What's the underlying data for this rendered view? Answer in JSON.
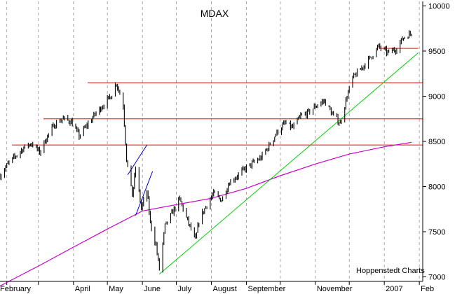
{
  "chart_data": {
    "type": "line",
    "title": "MDAX",
    "credit": "Hoppenstedt Charts",
    "ylim": [
      6950,
      10050
    ],
    "yticks": [
      "7000",
      "7500",
      "8000",
      "8500",
      "9000",
      "9500",
      "10000"
    ],
    "month_labels": [
      "February",
      "April",
      "May",
      "June",
      "July",
      "August",
      "September",
      "November",
      "2007",
      "Feb"
    ],
    "grid": "vertical-dashed",
    "price_series": {
      "name": "",
      "x": [
        "2006-01-26",
        "2006-02-02",
        "2006-02-09",
        "2006-02-16",
        "2006-02-23",
        "2006-03-02",
        "2006-03-09",
        "2006-03-16",
        "2006-03-23",
        "2006-03-30",
        "2006-04-06",
        "2006-04-13",
        "2006-04-20",
        "2006-04-27",
        "2006-05-04",
        "2006-05-09",
        "2006-05-15",
        "2006-05-18",
        "2006-05-23",
        "2006-05-26",
        "2006-05-31",
        "2006-06-05",
        "2006-06-08",
        "2006-06-13",
        "2006-06-16",
        "2006-06-21",
        "2006-06-27",
        "2006-07-04",
        "2006-07-11",
        "2006-07-18",
        "2006-07-21",
        "2006-07-27",
        "2006-08-03",
        "2006-08-10",
        "2006-08-17",
        "2006-08-24",
        "2006-08-31",
        "2006-09-07",
        "2006-09-14",
        "2006-09-21",
        "2006-09-28",
        "2006-10-05",
        "2006-10-12",
        "2006-10-19",
        "2006-10-26",
        "2006-11-02",
        "2006-11-09",
        "2006-11-16",
        "2006-11-23",
        "2006-11-29",
        "2006-12-04",
        "2006-12-11",
        "2006-12-18",
        "2006-12-27",
        "2007-01-04",
        "2007-01-11",
        "2007-01-18",
        "2007-01-25"
      ],
      "y": [
        8120,
        8250,
        8340,
        8430,
        8480,
        8380,
        8560,
        8700,
        8750,
        8720,
        8560,
        8680,
        8800,
        8900,
        9000,
        9150,
        8900,
        8300,
        7900,
        8200,
        7760,
        7950,
        7600,
        7350,
        7080,
        7560,
        7700,
        7860,
        7620,
        7400,
        7620,
        7780,
        7920,
        7850,
        8050,
        8120,
        8200,
        8260,
        8320,
        8450,
        8600,
        8700,
        8650,
        8780,
        8820,
        8900,
        8950,
        8800,
        8700,
        9000,
        9200,
        9300,
        9400,
        9550,
        9480,
        9520,
        9650,
        9700
      ]
    },
    "moving_average": {
      "name": "",
      "color": "#cc00cc",
      "x": [
        "2006-01-26",
        "2006-03-01",
        "2006-04-01",
        "2006-05-01",
        "2006-06-01",
        "2006-07-01",
        "2006-08-01",
        "2006-09-01",
        "2006-10-01",
        "2006-11-01",
        "2006-12-01",
        "2007-01-01",
        "2007-01-25"
      ],
      "y": [
        6900,
        7120,
        7330,
        7530,
        7730,
        7800,
        7870,
        7980,
        8120,
        8250,
        8360,
        8440,
        8490
      ]
    },
    "horizontal_lines": {
      "color": "#ff0000",
      "levels": [
        8460,
        8750,
        9150
      ]
    },
    "resistance_segment": {
      "color": "#ff0000",
      "level": 9530,
      "x": [
        "2006-12-27",
        "2007-01-31"
      ]
    },
    "trendline": {
      "color": "#00cc00",
      "x": [
        "2006-06-16",
        "2007-01-31"
      ],
      "y": [
        7030,
        9480
      ]
    },
    "flag_channel": {
      "color": "#0000cc",
      "upper": {
        "x": [
          "2006-05-19",
          "2006-06-05"
        ],
        "y": [
          8130,
          8460
        ]
      },
      "lower": {
        "x": [
          "2006-05-26",
          "2006-06-10"
        ],
        "y": [
          7680,
          8170
        ]
      }
    }
  }
}
